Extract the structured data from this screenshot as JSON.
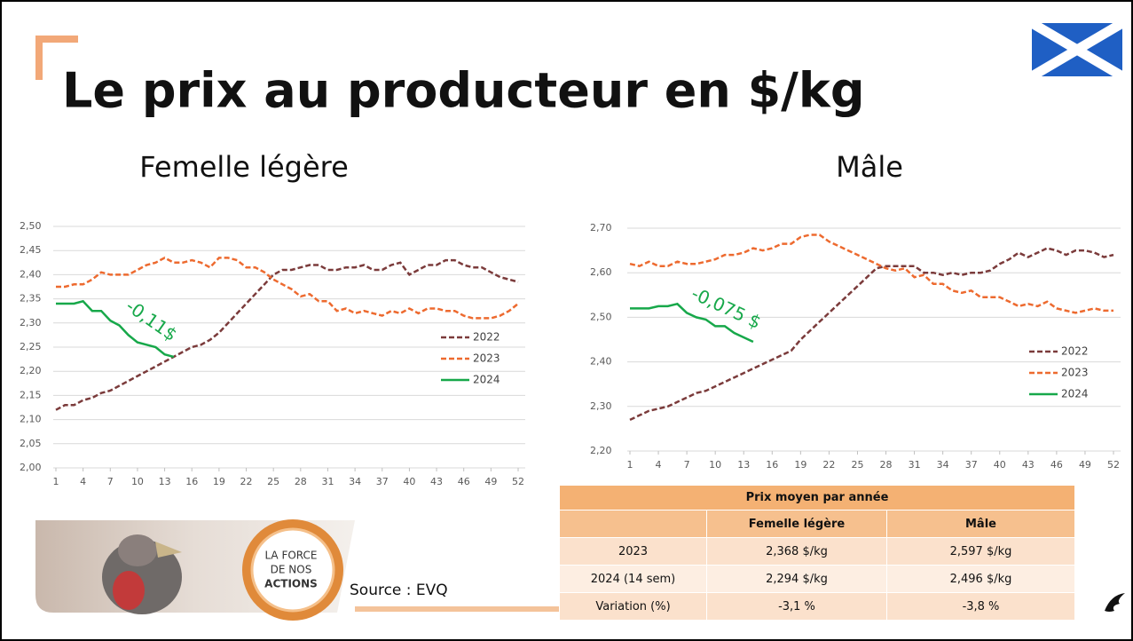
{
  "title": "Le prix au producteur en $/kg",
  "chart_data": [
    {
      "type": "line",
      "title": "Femelle légère",
      "x": [
        1,
        2,
        3,
        4,
        5,
        6,
        7,
        8,
        9,
        10,
        11,
        12,
        13,
        14,
        15,
        16,
        17,
        18,
        19,
        20,
        21,
        22,
        23,
        24,
        25,
        26,
        27,
        28,
        29,
        30,
        31,
        32,
        33,
        34,
        35,
        36,
        37,
        38,
        39,
        40,
        41,
        42,
        43,
        44,
        45,
        46,
        47,
        48,
        49,
        50,
        51,
        52
      ],
      "xlim": [
        1,
        52
      ],
      "xticks": [
        1,
        4,
        7,
        10,
        13,
        16,
        19,
        22,
        25,
        28,
        31,
        34,
        37,
        40,
        43,
        46,
        49,
        52
      ],
      "ylim": [
        2.0,
        2.5
      ],
      "yticks": [
        {
          "value": 2.0,
          "label": "2,00"
        },
        {
          "value": 2.05,
          "label": "2,05"
        },
        {
          "value": 2.1,
          "label": "2,10"
        },
        {
          "value": 2.15,
          "label": "2,15"
        },
        {
          "value": 2.2,
          "label": "2,20"
        },
        {
          "value": 2.25,
          "label": "2,25"
        },
        {
          "value": 2.3,
          "label": "2,30"
        },
        {
          "value": 2.35,
          "label": "2,35"
        },
        {
          "value": 2.4,
          "label": "2,40"
        },
        {
          "value": 2.45,
          "label": "2,45"
        },
        {
          "value": 2.5,
          "label": "2,50"
        }
      ],
      "grid": true,
      "series": [
        {
          "name": "2022",
          "color": "#7b3b3b",
          "style": "dashed",
          "values": [
            2.12,
            2.13,
            2.13,
            2.14,
            2.145,
            2.155,
            2.16,
            2.17,
            2.18,
            2.19,
            2.2,
            2.21,
            2.22,
            2.23,
            2.24,
            2.25,
            2.255,
            2.265,
            2.28,
            2.3,
            2.32,
            2.34,
            2.36,
            2.38,
            2.4,
            2.41,
            2.41,
            2.415,
            2.42,
            2.42,
            2.41,
            2.41,
            2.415,
            2.415,
            2.42,
            2.41,
            2.41,
            2.42,
            2.425,
            2.4,
            2.41,
            2.42,
            2.42,
            2.43,
            2.43,
            2.42,
            2.415,
            2.415,
            2.405,
            2.395,
            2.39,
            2.385
          ]
        },
        {
          "name": "2023",
          "color": "#ed6a2f",
          "style": "dashed",
          "values": [
            2.375,
            2.375,
            2.38,
            2.38,
            2.39,
            2.405,
            2.4,
            2.4,
            2.4,
            2.41,
            2.42,
            2.425,
            2.435,
            2.425,
            2.425,
            2.43,
            2.425,
            2.415,
            2.435,
            2.435,
            2.43,
            2.415,
            2.415,
            2.405,
            2.39,
            2.38,
            2.37,
            2.355,
            2.36,
            2.345,
            2.345,
            2.325,
            2.33,
            2.32,
            2.325,
            2.32,
            2.315,
            2.325,
            2.32,
            2.33,
            2.32,
            2.33,
            2.33,
            2.325,
            2.325,
            2.315,
            2.31,
            2.31,
            2.31,
            2.315,
            2.325,
            2.34
          ]
        },
        {
          "name": "2024",
          "color": "#17a84a",
          "style": "solid",
          "values": [
            2.34,
            2.34,
            2.34,
            2.345,
            2.325,
            2.325,
            2.305,
            2.295,
            2.275,
            2.26,
            2.255,
            2.25,
            2.235,
            2.23,
            null,
            null,
            null,
            null,
            null,
            null,
            null,
            null,
            null,
            null,
            null,
            null,
            null,
            null,
            null,
            null,
            null,
            null,
            null,
            null,
            null,
            null,
            null,
            null,
            null,
            null,
            null,
            null,
            null,
            null,
            null,
            null,
            null,
            null,
            null,
            null,
            null,
            null
          ]
        }
      ],
      "annotation": "-0,11$"
    },
    {
      "type": "line",
      "title": "Mâle",
      "x": [
        1,
        2,
        3,
        4,
        5,
        6,
        7,
        8,
        9,
        10,
        11,
        12,
        13,
        14,
        15,
        16,
        17,
        18,
        19,
        20,
        21,
        22,
        23,
        24,
        25,
        26,
        27,
        28,
        29,
        30,
        31,
        32,
        33,
        34,
        35,
        36,
        37,
        38,
        39,
        40,
        41,
        42,
        43,
        44,
        45,
        46,
        47,
        48,
        49,
        50,
        51,
        52
      ],
      "xlim": [
        1,
        52
      ],
      "xticks": [
        1,
        4,
        7,
        10,
        13,
        16,
        19,
        22,
        25,
        28,
        31,
        34,
        37,
        40,
        43,
        46,
        49,
        52
      ],
      "ylim": [
        2.2,
        2.7
      ],
      "yticks": [
        {
          "value": 2.2,
          "label": "2,20"
        },
        {
          "value": 2.3,
          "label": "2,30"
        },
        {
          "value": 2.4,
          "label": "2,40"
        },
        {
          "value": 2.5,
          "label": "2,50"
        },
        {
          "value": 2.6,
          "label": "2,60"
        },
        {
          "value": 2.7,
          "label": "2,70"
        }
      ],
      "grid": true,
      "series": [
        {
          "name": "2022",
          "color": "#7b3b3b",
          "style": "dashed",
          "values": [
            2.27,
            2.28,
            2.29,
            2.295,
            2.3,
            2.31,
            2.32,
            2.33,
            2.335,
            2.345,
            2.355,
            2.365,
            2.375,
            2.385,
            2.395,
            2.405,
            2.415,
            2.425,
            2.45,
            2.47,
            2.49,
            2.51,
            2.53,
            2.55,
            2.57,
            2.59,
            2.61,
            2.615,
            2.615,
            2.615,
            2.615,
            2.6,
            2.6,
            2.595,
            2.6,
            2.595,
            2.6,
            2.6,
            2.605,
            2.62,
            2.63,
            2.645,
            2.635,
            2.645,
            2.655,
            2.65,
            2.64,
            2.65,
            2.65,
            2.645,
            2.635,
            2.64
          ]
        },
        {
          "name": "2023",
          "color": "#ed6a2f",
          "style": "dashed",
          "values": [
            2.62,
            2.615,
            2.625,
            2.615,
            2.615,
            2.625,
            2.62,
            2.62,
            2.625,
            2.63,
            2.64,
            2.64,
            2.645,
            2.655,
            2.65,
            2.655,
            2.665,
            2.665,
            2.68,
            2.685,
            2.685,
            2.67,
            2.66,
            2.65,
            2.64,
            2.63,
            2.62,
            2.61,
            2.605,
            2.61,
            2.59,
            2.595,
            2.575,
            2.575,
            2.56,
            2.555,
            2.56,
            2.545,
            2.545,
            2.545,
            2.535,
            2.525,
            2.53,
            2.525,
            2.535,
            2.52,
            2.515,
            2.51,
            2.515,
            2.52,
            2.515,
            2.515
          ]
        },
        {
          "name": "2024",
          "color": "#17a84a",
          "style": "solid",
          "values": [
            2.52,
            2.52,
            2.52,
            2.525,
            2.525,
            2.53,
            2.51,
            2.5,
            2.495,
            2.48,
            2.48,
            2.465,
            2.455,
            2.445,
            null,
            null,
            null,
            null,
            null,
            null,
            null,
            null,
            null,
            null,
            null,
            null,
            null,
            null,
            null,
            null,
            null,
            null,
            null,
            null,
            null,
            null,
            null,
            null,
            null,
            null,
            null,
            null,
            null,
            null,
            null,
            null,
            null,
            null,
            null,
            null,
            null,
            null
          ]
        }
      ],
      "annotation": "-0,075 $"
    }
  ],
  "table": {
    "title": "Prix moyen par année",
    "header": [
      "Femelle légère",
      "Mâle"
    ],
    "rows": [
      [
        "2023",
        "2,368 $/kg",
        "2,597 $/kg"
      ],
      [
        "2024 (14 sem)",
        "2,294 $/kg",
        "2,496 $/kg"
      ],
      [
        "Variation (%)",
        "-3,1 %",
        "-3,8 %"
      ]
    ]
  },
  "logo": [
    "LA FORCE",
    "DE NOS",
    "ACTIONS"
  ],
  "source": "Source : EVQ"
}
